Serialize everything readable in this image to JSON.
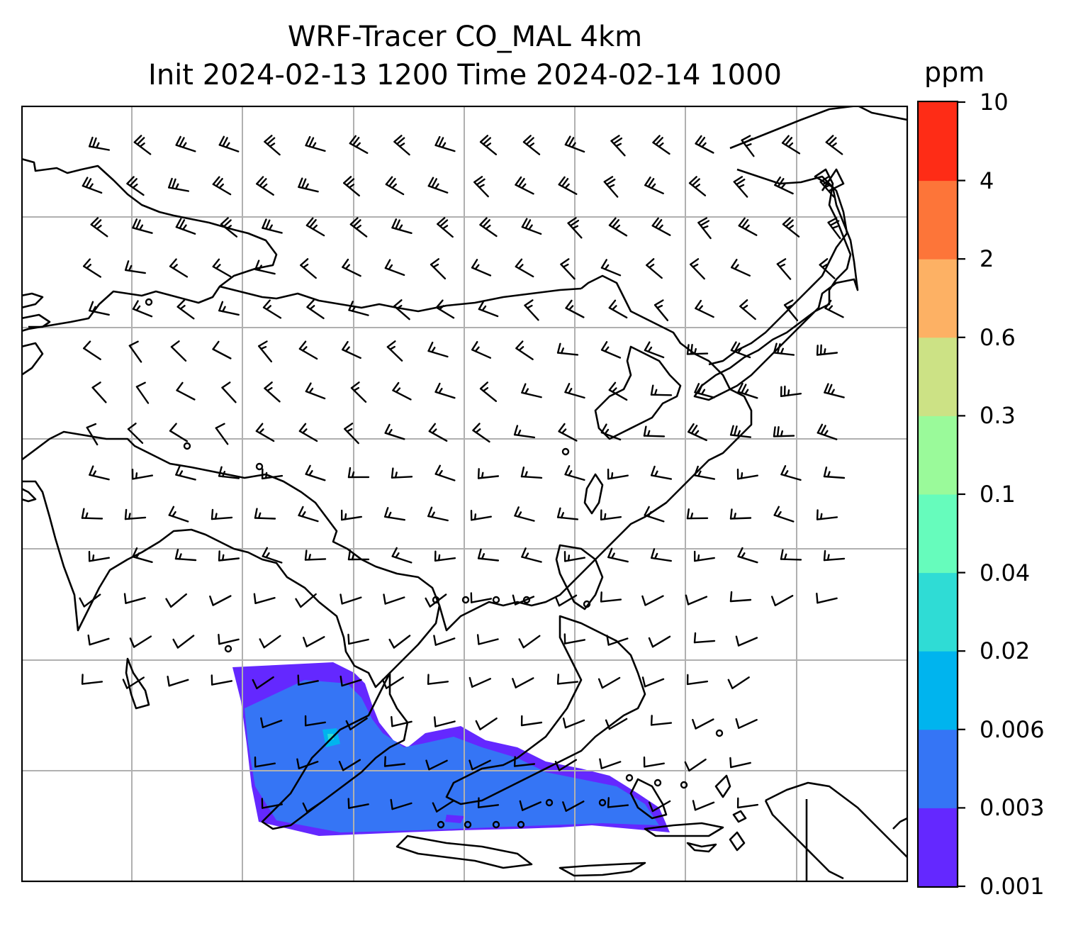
{
  "title": {
    "line1": "WRF-Tracer CO_MAL 4km",
    "line2": "Init 2024-02-13 1200 Time 2024-02-14 1000"
  },
  "colorbar": {
    "unit": "ppm",
    "levels": [
      "0.001",
      "0.003",
      "0.006",
      "0.02",
      "0.04",
      "0.1",
      "0.3",
      "0.6",
      "2",
      "4",
      "10"
    ],
    "colors": [
      "#6428ff",
      "#3575f5",
      "#00b4ee",
      "#2fdcd5",
      "#66fcbc",
      "#9afa9a",
      "#cce285",
      "#fdb164",
      "#fd7539",
      "#fe2c16"
    ]
  },
  "map": {
    "gridlines": "on",
    "coastline_color": "#000000",
    "wind_barb_color": "#000000",
    "tracer_field": {
      "value_range_ppm": [
        0.001,
        0.006
      ],
      "dominant_colors": [
        "#6428ff",
        "#3575f5"
      ]
    }
  }
}
